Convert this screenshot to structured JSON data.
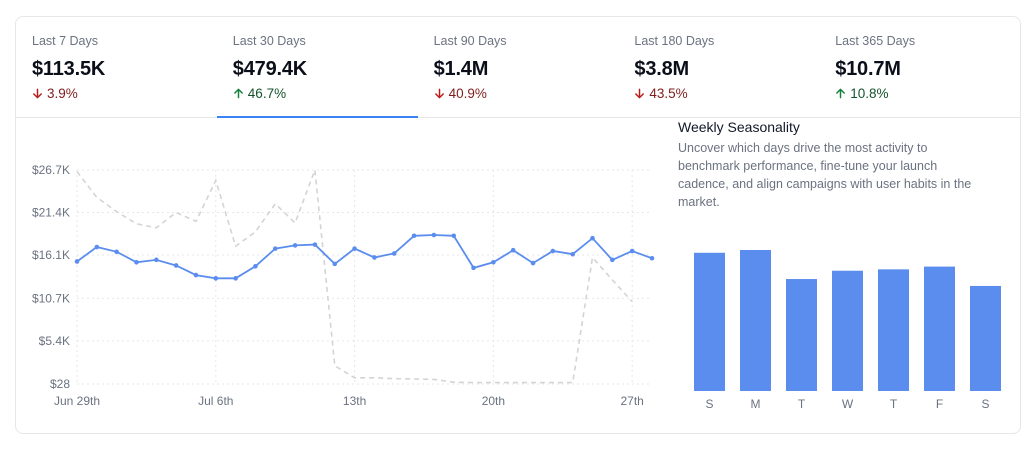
{
  "tabs": [
    {
      "label": "Last 7 Days",
      "value": "$113.5K",
      "change": "3.9%",
      "direction": "down",
      "active": false
    },
    {
      "label": "Last 30 Days",
      "value": "$479.4K",
      "change": "46.7%",
      "direction": "up",
      "active": true
    },
    {
      "label": "Last 90 Days",
      "value": "$1.4M",
      "change": "40.9%",
      "direction": "down",
      "active": false
    },
    {
      "label": "Last 180 Days",
      "value": "$3.8M",
      "change": "43.5%",
      "direction": "down",
      "active": false
    },
    {
      "label": "Last 365 Days",
      "value": "$10.7M",
      "change": "10.8%",
      "direction": "up",
      "active": false
    }
  ],
  "colors": {
    "accent": "#3b82f6",
    "line_primary": "#5b8def",
    "line_previous": "#d4d4d4",
    "bar": "#5b8def",
    "up": "#15803d",
    "down": "#b91c1c"
  },
  "seasonality": {
    "title": "Weekly Seasonality",
    "description": "Uncover which days drive the most activity to benchmark performance, fine-tune your launch cadence, and align campaigns with user habits in the market."
  },
  "chart_data": [
    {
      "type": "line",
      "y_tick_labels": [
        "$26.7K",
        "$21.4K",
        "$16.1K",
        "$10.7K",
        "$5.4K",
        "$28"
      ],
      "y_ticks": [
        26700,
        21400,
        16100,
        10700,
        5400,
        28
      ],
      "ylim": [
        28,
        26700
      ],
      "x_tick_labels": [
        "Jun 29th",
        "Jul 6th",
        "13th",
        "20th",
        "27th"
      ],
      "x_tick_indices": [
        0,
        7,
        14,
        21,
        28
      ],
      "grid": true,
      "series": [
        {
          "style": "solid",
          "values": [
            15300,
            17100,
            16500,
            15200,
            15500,
            14800,
            13600,
            13200,
            13200,
            14700,
            16900,
            17300,
            17400,
            15000,
            16900,
            15800,
            16300,
            18500,
            18600,
            18500,
            14500,
            15200,
            16700,
            15100,
            16600,
            16200,
            18200,
            15500,
            16600,
            15700
          ]
        },
        {
          "style": "dashed",
          "values": [
            26500,
            23300,
            21500,
            20000,
            19500,
            21400,
            20300,
            25400,
            17200,
            19000,
            22500,
            20100,
            26700,
            2300,
            800,
            800,
            700,
            650,
            600,
            250,
            200,
            200,
            200,
            200,
            200,
            200,
            15800,
            13000,
            10300
          ]
        }
      ]
    },
    {
      "type": "bar",
      "categories": [
        "S",
        "M",
        "T",
        "W",
        "T",
        "F",
        "S"
      ],
      "values": [
        100,
        102,
        81,
        87,
        88,
        90,
        76
      ]
    }
  ]
}
